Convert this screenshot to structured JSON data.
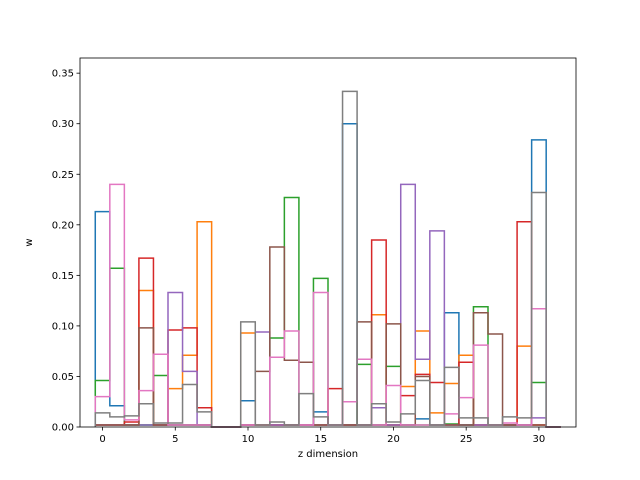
{
  "chart_data": {
    "type": "histogram-step",
    "xlabel": "z dimension",
    "ylabel": "w",
    "xlim": [
      -1.55,
      32.55
    ],
    "ylim": [
      0,
      0.365
    ],
    "xticks": [
      0,
      5,
      10,
      15,
      20,
      25,
      30
    ],
    "yticks": [
      0.0,
      0.05,
      0.1,
      0.15,
      0.2,
      0.25,
      0.3,
      0.35
    ],
    "bin_edges": [
      -0.5,
      0.5,
      1.5,
      2.5,
      3.5,
      4.5,
      5.5,
      6.5,
      7.5,
      8.5,
      9.5,
      10.5,
      11.5,
      12.5,
      13.5,
      14.5,
      15.5,
      16.5,
      17.5,
      18.5,
      19.5,
      20.5,
      21.5,
      22.5,
      23.5,
      24.5,
      25.5,
      26.5,
      27.5,
      28.5,
      29.5,
      30.5,
      31.5
    ],
    "series": [
      {
        "color": "#1f77b4",
        "values": [
          0.213,
          0.021,
          0.002,
          0.002,
          0.002,
          0.002,
          0.002,
          0.002,
          0,
          0,
          0.026,
          0.002,
          0.002,
          0.002,
          0.002,
          0.015,
          0.002,
          0.3,
          0.002,
          0.002,
          0.002,
          0.002,
          0.008,
          0.002,
          0.113,
          0.002,
          0.002,
          0.002,
          0.002,
          0.002,
          0.284,
          0
        ]
      },
      {
        "color": "#ff7f0e",
        "values": [
          0.002,
          0.002,
          0.002,
          0.135,
          0.002,
          0.038,
          0.071,
          0.203,
          0,
          0,
          0.093,
          0.002,
          0.002,
          0.002,
          0.002,
          0.002,
          0.002,
          0.002,
          0.002,
          0.111,
          0.002,
          0.04,
          0.095,
          0.014,
          0.043,
          0.071,
          0.002,
          0.002,
          0.002,
          0.08,
          0.002,
          0
        ]
      },
      {
        "color": "#2ca02c",
        "values": [
          0.046,
          0.157,
          0.002,
          0.002,
          0.051,
          0.002,
          0.002,
          0.002,
          0,
          0,
          0.002,
          0.002,
          0.088,
          0.227,
          0.002,
          0.147,
          0.002,
          0.002,
          0.062,
          0.002,
          0.06,
          0.002,
          0.002,
          0.002,
          0.003,
          0.002,
          0.119,
          0.002,
          0.002,
          0.002,
          0.044,
          0
        ]
      },
      {
        "color": "#d62728",
        "values": [
          0.002,
          0.002,
          0.005,
          0.167,
          0.002,
          0.096,
          0.098,
          0.019,
          0,
          0,
          0.002,
          0.002,
          0.002,
          0.002,
          0.002,
          0.002,
          0.038,
          0.002,
          0.002,
          0.185,
          0.002,
          0.031,
          0.052,
          0.044,
          0.002,
          0.064,
          0.002,
          0.002,
          0.002,
          0.203,
          0.002,
          0
        ]
      },
      {
        "color": "#9467bd",
        "values": [
          0.002,
          0.002,
          0.002,
          0.002,
          0.002,
          0.133,
          0.055,
          0.002,
          0,
          0,
          0.002,
          0.094,
          0.002,
          0.002,
          0.002,
          0.002,
          0.002,
          0.002,
          0.002,
          0.019,
          0.002,
          0.24,
          0.067,
          0.194,
          0.002,
          0.002,
          0.002,
          0.002,
          0.002,
          0.002,
          0.009,
          0
        ]
      },
      {
        "color": "#8c564b",
        "values": [
          0.002,
          0.002,
          0.002,
          0.098,
          0.002,
          0.002,
          0.002,
          0.002,
          0,
          0,
          0.002,
          0.055,
          0.178,
          0.066,
          0.064,
          0.002,
          0.002,
          0.002,
          0.104,
          0.002,
          0.102,
          0.002,
          0.05,
          0.002,
          0.002,
          0.002,
          0.113,
          0.092,
          0.002,
          0.002,
          0.002,
          0
        ]
      },
      {
        "color": "#e377c2",
        "values": [
          0.03,
          0.24,
          0.007,
          0.036,
          0.072,
          0.002,
          0.002,
          0.002,
          0,
          0,
          0.002,
          0.002,
          0.069,
          0.095,
          0.002,
          0.133,
          0.002,
          0.025,
          0.067,
          0.002,
          0.041,
          0.002,
          0.002,
          0.002,
          0.013,
          0.029,
          0.081,
          0.002,
          0.004,
          0.002,
          0.117,
          0
        ]
      },
      {
        "color": "#7f7f7f",
        "values": [
          0.014,
          0.01,
          0.011,
          0.023,
          0.004,
          0.004,
          0.042,
          0.015,
          0,
          0,
          0.104,
          0.002,
          0.005,
          0.002,
          0.033,
          0.01,
          0.002,
          0.332,
          0.002,
          0.023,
          0.005,
          0.013,
          0.046,
          0.002,
          0.059,
          0.009,
          0.009,
          0.002,
          0.01,
          0.009,
          0.232,
          0
        ]
      }
    ]
  }
}
